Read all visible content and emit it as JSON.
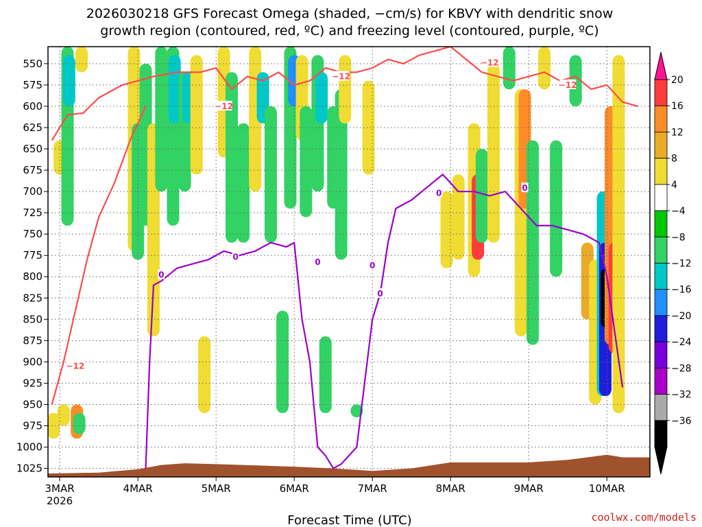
{
  "title": {
    "line1": "2026030218 GFS Forecast Omega (shaded, −cm/s) for KBVY with dendritic snow",
    "line2": "growth region (contoured, red, ºC) and freezing level (contoured, purple, ºC)"
  },
  "credit": "coolwx.com/models",
  "colors": {
    "snow_growth_contour": "#ff4b4b",
    "freezing_level_contour": "#9900cc",
    "terrain": "#a0522d"
  },
  "chart_data": {
    "type": "heatmap",
    "title": "2026030218 GFS Forecast Omega (shaded, −cm/s) for KBVY with dendritic snow growth region (contoured, red, ºC) and freezing level (contoured, purple, ºC)",
    "xlabel": "Forecast Time (UTC)",
    "ylabel": "",
    "x_ticks": [
      "3MAR",
      "4MAR",
      "5MAR",
      "6MAR",
      "7MAR",
      "8MAR",
      "9MAR",
      "10MAR"
    ],
    "x_tick_year": "2026",
    "x_range": [
      -0.15,
      7.55
    ],
    "y_ticks": [
      550,
      575,
      600,
      625,
      650,
      675,
      700,
      725,
      750,
      775,
      800,
      825,
      850,
      875,
      900,
      925,
      950,
      975,
      1000,
      1025
    ],
    "y_range": [
      530,
      1035
    ],
    "grid": true,
    "colorbar": {
      "labels": [
        "20",
        "16",
        "12",
        "8",
        "4",
        "−4",
        "−8",
        "−12",
        "−16",
        "−20",
        "−24",
        "−28",
        "−32",
        "−36"
      ],
      "colors": [
        "#ff1493",
        "#ff3c3c",
        "#ff8c28",
        "#ebaa28",
        "#f0dc32",
        "#ffffff",
        "#00c800",
        "#32d264",
        "#00c8c8",
        "#1e90ff",
        "#1e1edc",
        "#7800dc",
        "#aa00c8",
        "#aaaaaa",
        "#000000"
      ]
    },
    "shaded_regions": [
      {
        "x": 0.0,
        "p": [
          640,
          680
        ],
        "v": 4
      },
      {
        "x": -0.08,
        "p": [
          960,
          990
        ],
        "v": 4
      },
      {
        "x": 0.05,
        "p": [
          950,
          975
        ],
        "v": 4
      },
      {
        "x": 0.22,
        "p": [
          950,
          990
        ],
        "v": 12
      },
      {
        "x": 0.25,
        "p": [
          960,
          985
        ],
        "v": -8
      },
      {
        "x": 0.1,
        "p": [
          530,
          740
        ],
        "v": -8
      },
      {
        "x": 0.12,
        "p": [
          540,
          600
        ],
        "v": -12
      },
      {
        "x": 0.28,
        "p": [
          530,
          560
        ],
        "v": 4
      },
      {
        "x": 0.95,
        "p": [
          530,
          770
        ],
        "v": 4
      },
      {
        "x": 1.0,
        "p": [
          620,
          780
        ],
        "v": -8
      },
      {
        "x": 1.1,
        "p": [
          550,
          740
        ],
        "v": -8
      },
      {
        "x": 1.2,
        "p": [
          620,
          870
        ],
        "v": 4
      },
      {
        "x": 1.3,
        "p": [
          530,
          700
        ],
        "v": -8
      },
      {
        "x": 1.45,
        "p": [
          530,
          740
        ],
        "v": -8
      },
      {
        "x": 1.47,
        "p": [
          540,
          620
        ],
        "v": -12
      },
      {
        "x": 1.6,
        "p": [
          560,
          700
        ],
        "v": -8
      },
      {
        "x": 1.65,
        "p": [
          560,
          620
        ],
        "v": -12
      },
      {
        "x": 1.75,
        "p": [
          540,
          680
        ],
        "v": 4
      },
      {
        "x": 1.85,
        "p": [
          870,
          960
        ],
        "v": 4
      },
      {
        "x": 2.1,
        "p": [
          530,
          660
        ],
        "v": 4
      },
      {
        "x": 2.2,
        "p": [
          560,
          760
        ],
        "v": -8
      },
      {
        "x": 2.35,
        "p": [
          620,
          760
        ],
        "v": -8
      },
      {
        "x": 2.5,
        "p": [
          530,
          700
        ],
        "v": 4
      },
      {
        "x": 2.6,
        "p": [
          560,
          620
        ],
        "v": -12
      },
      {
        "x": 2.7,
        "p": [
          600,
          760
        ],
        "v": -8
      },
      {
        "x": 2.85,
        "p": [
          840,
          960
        ],
        "v": -8
      },
      {
        "x": 2.95,
        "p": [
          530,
          720
        ],
        "v": -8
      },
      {
        "x": 3.0,
        "p": [
          540,
          600
        ],
        "v": -16
      },
      {
        "x": 3.1,
        "p": [
          540,
          640
        ],
        "v": 4
      },
      {
        "x": 3.15,
        "p": [
          600,
          730
        ],
        "v": -8
      },
      {
        "x": 3.3,
        "p": [
          540,
          700
        ],
        "v": -8
      },
      {
        "x": 3.35,
        "p": [
          560,
          620
        ],
        "v": -12
      },
      {
        "x": 3.4,
        "p": [
          870,
          960
        ],
        "v": -8
      },
      {
        "x": 3.5,
        "p": [
          600,
          720
        ],
        "v": -8
      },
      {
        "x": 3.6,
        "p": [
          580,
          780
        ],
        "v": -8
      },
      {
        "x": 3.65,
        "p": [
          540,
          620
        ],
        "v": 4
      },
      {
        "x": 3.8,
        "p": [
          950,
          965
        ],
        "v": -8
      },
      {
        "x": 3.95,
        "p": [
          570,
          680
        ],
        "v": 4
      },
      {
        "x": 4.95,
        "p": [
          700,
          790
        ],
        "v": 4
      },
      {
        "x": 5.1,
        "p": [
          680,
          780
        ],
        "v": 4
      },
      {
        "x": 5.3,
        "p": [
          620,
          800
        ],
        "v": 4
      },
      {
        "x": 5.35,
        "p": [
          680,
          780
        ],
        "v": 16
      },
      {
        "x": 5.4,
        "p": [
          650,
          760
        ],
        "v": -8
      },
      {
        "x": 5.55,
        "p": [
          550,
          760
        ],
        "v": 4
      },
      {
        "x": 5.75,
        "p": [
          530,
          580
        ],
        "v": -8
      },
      {
        "x": 5.9,
        "p": [
          580,
          870
        ],
        "v": 4
      },
      {
        "x": 5.95,
        "p": [
          580,
          720
        ],
        "v": 12
      },
      {
        "x": 6.05,
        "p": [
          640,
          880
        ],
        "v": -8
      },
      {
        "x": 6.2,
        "p": [
          530,
          580
        ],
        "v": 4
      },
      {
        "x": 6.35,
        "p": [
          640,
          800
        ],
        "v": -8
      },
      {
        "x": 6.6,
        "p": [
          540,
          600
        ],
        "v": -8
      },
      {
        "x": 6.75,
        "p": [
          760,
          850
        ],
        "v": 8
      },
      {
        "x": 6.85,
        "p": [
          780,
          950
        ],
        "v": 4
      },
      {
        "x": 6.95,
        "p": [
          700,
          940
        ],
        "v": -12
      },
      {
        "x": 6.98,
        "p": [
          760,
          940
        ],
        "v": -20
      },
      {
        "x": 7.0,
        "p": [
          790,
          860
        ],
        "v": -36
      },
      {
        "x": 7.05,
        "p": [
          600,
          880
        ],
        "v": 12
      },
      {
        "x": 7.1,
        "p": [
          760,
          890
        ],
        "v": 16
      },
      {
        "x": 7.15,
        "p": [
          540,
          960
        ],
        "v": 4
      }
    ],
    "series": [
      {
        "name": "−12",
        "x": [
          -0.1,
          0.1,
          0.3,
          0.5,
          0.8,
          1.0,
          1.2,
          1.5,
          1.8,
          2.0,
          2.2,
          2.4,
          2.6,
          2.8,
          3.0,
          3.2,
          3.4,
          3.6,
          3.8,
          4.0,
          4.2,
          4.4,
          4.6,
          4.8,
          5.0,
          5.2,
          5.4,
          5.6,
          5.8,
          6.0,
          6.2,
          6.4,
          6.6,
          6.8,
          7.0,
          7.2,
          7.4
        ],
        "y": [
          640,
          610,
          608,
          590,
          575,
          570,
          565,
          560,
          560,
          555,
          580,
          565,
          570,
          560,
          575,
          570,
          555,
          560,
          560,
          555,
          545,
          550,
          540,
          535,
          530,
          545,
          560,
          565,
          570,
          565,
          560,
          570,
          565,
          580,
          575,
          595,
          600
        ]
      },
      {
        "name": "−12",
        "x": [
          -0.1,
          0.05,
          0.15,
          0.25,
          0.35,
          0.5,
          0.7,
          0.9,
          1.1
        ],
        "y": [
          950,
          900,
          860,
          820,
          780,
          730,
          690,
          640,
          600
        ]
      },
      {
        "name": "0",
        "x": [
          1.1,
          1.15,
          1.2,
          1.3,
          1.5,
          1.7,
          1.9,
          2.1,
          2.3,
          2.5,
          2.7,
          2.9,
          3.0,
          3.1,
          3.2,
          3.3,
          3.4,
          3.5,
          3.6,
          3.8,
          4.0,
          4.1,
          4.2,
          4.3,
          4.5,
          4.7,
          4.9,
          5.1,
          5.3,
          5.5,
          5.7,
          5.9,
          6.1,
          6.3,
          6.5,
          6.7,
          6.9,
          7.0,
          7.2
        ],
        "y": [
          1025,
          900,
          810,
          805,
          790,
          785,
          780,
          770,
          775,
          770,
          760,
          765,
          760,
          850,
          900,
          1000,
          1010,
          1025,
          1020,
          1000,
          850,
          820,
          760,
          720,
          710,
          695,
          680,
          700,
          700,
          705,
          700,
          720,
          740,
          740,
          745,
          750,
          760,
          800,
          930
        ]
      }
    ],
    "contour_labels": [
      "−12",
      "−12",
      "−12",
      "−12",
      "−12",
      "0",
      "0",
      "0",
      "0",
      "0",
      "0",
      "0"
    ]
  }
}
